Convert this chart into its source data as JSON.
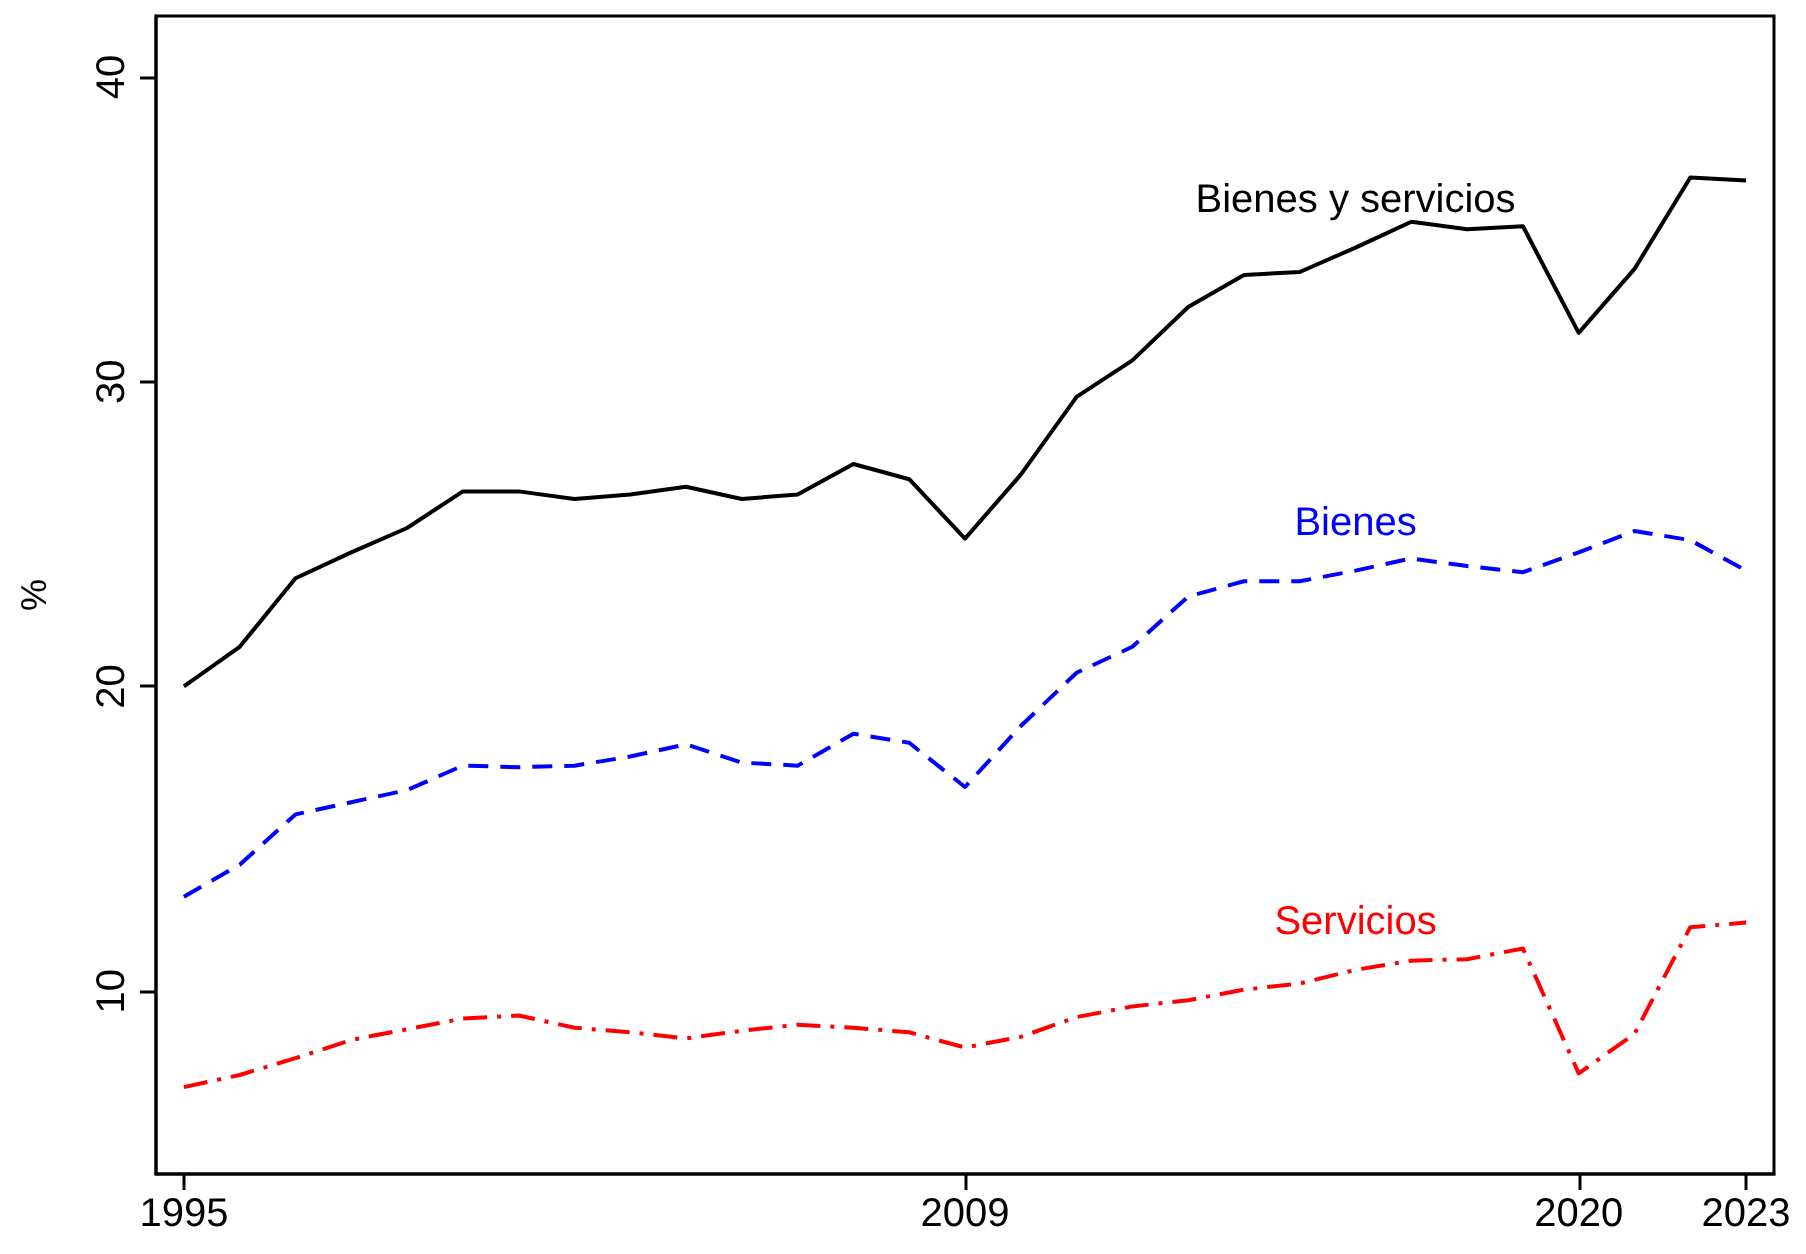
{
  "chart_data": {
    "type": "line",
    "ylabel": "%",
    "x": [
      1995,
      1996,
      1997,
      1998,
      1999,
      2000,
      2001,
      2002,
      2003,
      2004,
      2005,
      2006,
      2007,
      2008,
      2009,
      2010,
      2011,
      2012,
      2013,
      2014,
      2015,
      2016,
      2017,
      2018,
      2019,
      2020,
      2021,
      2022,
      2023
    ],
    "series": [
      {
        "name": "Bienes y servicios",
        "color": "#000000",
        "line_style": "solid",
        "values": [
          20.0,
          21.3,
          23.55,
          24.4,
          25.2,
          26.4,
          26.4,
          26.15,
          26.3,
          26.55,
          26.15,
          26.3,
          27.3,
          26.8,
          24.85,
          26.95,
          29.5,
          30.7,
          32.45,
          33.5,
          33.6,
          34.4,
          35.25,
          35.0,
          35.1,
          31.6,
          33.7,
          36.7,
          36.6
        ]
      },
      {
        "name": "Bienes",
        "color": "#0000ff",
        "line_style": "dashed",
        "values": [
          13.1,
          14.15,
          15.8,
          16.2,
          16.6,
          17.4,
          17.35,
          17.4,
          17.7,
          18.1,
          17.5,
          17.4,
          18.45,
          18.15,
          16.7,
          18.7,
          20.45,
          21.3,
          22.95,
          23.45,
          23.45,
          23.8,
          24.2,
          23.95,
          23.75,
          24.4,
          25.1,
          24.8,
          23.8
        ]
      },
      {
        "name": "Servicios",
        "color": "#ff0000",
        "line_style": "dashdot",
        "values": [
          6.85,
          7.25,
          7.8,
          8.4,
          8.75,
          9.1,
          9.2,
          8.8,
          8.65,
          8.45,
          8.7,
          8.9,
          8.8,
          8.65,
          8.15,
          8.5,
          9.15,
          9.5,
          9.7,
          10.05,
          10.25,
          10.7,
          11.0,
          11.05,
          11.4,
          7.3,
          8.6,
          12.1,
          12.25
        ]
      }
    ],
    "xlim": [
      1994.5,
      2023.5
    ],
    "xticks": [
      1995,
      2009,
      2020,
      2023
    ],
    "ylim": [
      4,
      42
    ],
    "yticks": [
      10,
      20,
      30,
      40
    ],
    "grid": false,
    "marker": "none"
  }
}
